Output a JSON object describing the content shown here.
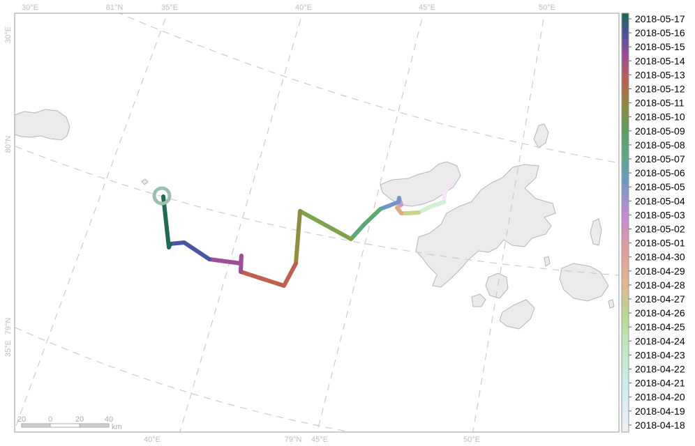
{
  "map": {
    "graticule_labels": {
      "top": [
        "30°E",
        "81°N",
        "35°E",
        "40°E",
        "45°E",
        "50°E"
      ],
      "left": [
        "30°E",
        "80°N",
        "79°N",
        "35°E"
      ],
      "bottom": [
        "40°E",
        "79°N",
        "45°E",
        "50°E"
      ]
    },
    "scale_bar": {
      "ticks": [
        "20",
        "0",
        "20",
        "40"
      ],
      "unit": "km"
    },
    "track": {
      "start_marker": "circle-icon",
      "color_scheme": [
        "#f4ecf7",
        "#d6f0d8",
        "#c7d68e",
        "#e3a48a",
        "#cf9ad8",
        "#6f96c9",
        "#5ba872",
        "#8c9f48",
        "#c4614f",
        "#a24f96",
        "#4b56a3",
        "#1f6a53"
      ]
    },
    "land_color": "#ebebeb",
    "land_stroke": "#b5b5b5",
    "grid_color": "#cccccc"
  },
  "legend": {
    "labels": [
      "2018-05-17",
      "2018-05-16",
      "2018-05-15",
      "2018-05-14",
      "2018-05-13",
      "2018-05-12",
      "2018-05-11",
      "2018-05-10",
      "2018-05-09",
      "2018-05-08",
      "2018-05-07",
      "2018-05-06",
      "2018-05-05",
      "2018-05-04",
      "2018-05-03",
      "2018-05-02",
      "2018-05-01",
      "2018-04-30",
      "2018-04-29",
      "2018-04-28",
      "2018-04-27",
      "2018-04-26",
      "2018-04-25",
      "2018-04-24",
      "2018-04-23",
      "2018-04-22",
      "2018-04-21",
      "2018-04-20",
      "2018-04-19",
      "2018-04-18"
    ]
  }
}
